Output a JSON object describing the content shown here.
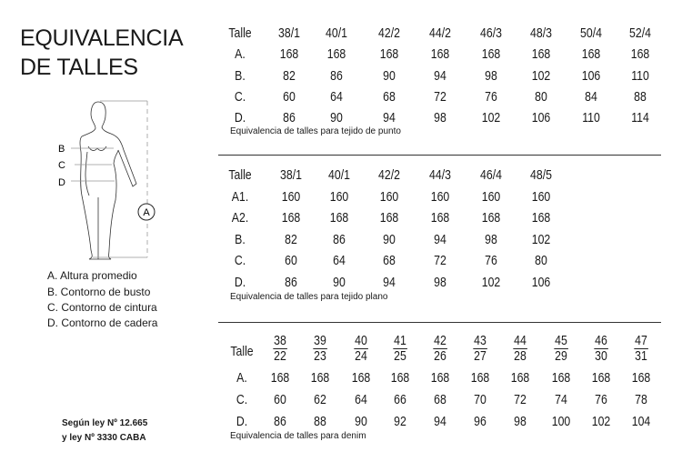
{
  "title": {
    "line1": "EQUIVALENCIA",
    "line2": "DE TALLES"
  },
  "figure": {
    "labels": [
      "B",
      "C",
      "D"
    ],
    "height_marker": "A"
  },
  "legend": [
    "A. Altura promedio",
    "B. Contorno de busto",
    "C. Contorno de cintura",
    "D. Contorno de cadera"
  ],
  "law": {
    "line1": "Según ley Nº 12.665",
    "line2": "y ley Nº 3330 CABA"
  },
  "tables": [
    {
      "header_label": "Talle",
      "sizes": [
        "38/1",
        "40/1",
        "42/2",
        "44/2",
        "46/3",
        "48/3",
        "50/4",
        "52/4"
      ],
      "rows": [
        {
          "label": "A.",
          "values": [
            "168",
            "168",
            "168",
            "168",
            "168",
            "168",
            "168",
            "168"
          ]
        },
        {
          "label": "B.",
          "values": [
            "82",
            "86",
            "90",
            "94",
            "98",
            "102",
            "106",
            "110"
          ]
        },
        {
          "label": "C.",
          "values": [
            "60",
            "64",
            "68",
            "72",
            "76",
            "80",
            "84",
            "88"
          ]
        },
        {
          "label": "D.",
          "values": [
            "86",
            "90",
            "94",
            "98",
            "102",
            "106",
            "110",
            "114"
          ]
        }
      ],
      "caption": "Equivalencia de talles para tejido de punto"
    },
    {
      "header_label": "Talle",
      "sizes": [
        "38/1",
        "40/1",
        "42/2",
        "44/3",
        "46/4",
        "48/5"
      ],
      "rows": [
        {
          "label": "A1.",
          "values": [
            "160",
            "160",
            "160",
            "160",
            "160",
            "160"
          ]
        },
        {
          "label": "A2.",
          "values": [
            "168",
            "168",
            "168",
            "168",
            "168",
            "168"
          ]
        },
        {
          "label": "B.",
          "values": [
            "82",
            "86",
            "90",
            "94",
            "98",
            "102"
          ]
        },
        {
          "label": "C.",
          "values": [
            "60",
            "64",
            "68",
            "72",
            "76",
            "80"
          ]
        },
        {
          "label": "D.",
          "values": [
            "86",
            "90",
            "94",
            "98",
            "102",
            "106"
          ]
        }
      ],
      "caption": "Equivalencia de talles para tejido plano"
    },
    {
      "header_label": "Talle",
      "sizes": [
        [
          "38",
          "22"
        ],
        [
          "39",
          "23"
        ],
        [
          "40",
          "24"
        ],
        [
          "41",
          "25"
        ],
        [
          "42",
          "26"
        ],
        [
          "43",
          "27"
        ],
        [
          "44",
          "28"
        ],
        [
          "45",
          "29"
        ],
        [
          "46",
          "30"
        ],
        [
          "47",
          "31"
        ]
      ],
      "rows": [
        {
          "label": "A.",
          "values": [
            "168",
            "168",
            "168",
            "168",
            "168",
            "168",
            "168",
            "168",
            "168",
            "168"
          ]
        },
        {
          "label": "C.",
          "values": [
            "60",
            "62",
            "64",
            "66",
            "68",
            "70",
            "72",
            "74",
            "76",
            "78"
          ]
        },
        {
          "label": "D.",
          "values": [
            "86",
            "88",
            "90",
            "92",
            "94",
            "96",
            "98",
            "100",
            "102",
            "104"
          ]
        }
      ],
      "caption": "Equivalencia de talles para denim"
    }
  ]
}
